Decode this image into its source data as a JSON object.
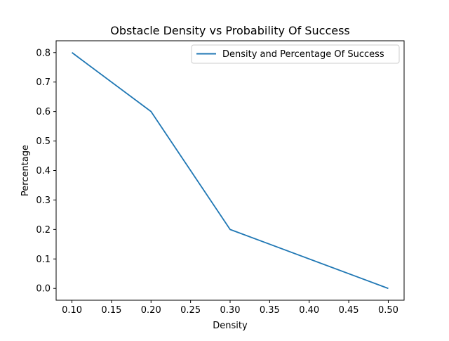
{
  "chart_data": {
    "type": "line",
    "title": "Obstacle Density vs Probability Of Success",
    "xlabel": "Density",
    "ylabel": "Percentage",
    "x": [
      0.1,
      0.2,
      0.3,
      0.5
    ],
    "series": [
      {
        "name": "Density and Percentage Of Success",
        "values": [
          0.8,
          0.6,
          0.2,
          0.0
        ]
      }
    ],
    "xlim": [
      0.08,
      0.52
    ],
    "ylim": [
      -0.04,
      0.84
    ],
    "xticks": [
      "0.10",
      "0.15",
      "0.20",
      "0.25",
      "0.30",
      "0.35",
      "0.40",
      "0.45",
      "0.50"
    ],
    "yticks": [
      "0.0",
      "0.1",
      "0.2",
      "0.3",
      "0.4",
      "0.5",
      "0.6",
      "0.7",
      "0.8"
    ],
    "grid": false,
    "legend_position": "top-right",
    "line_color": "#1f77b4"
  }
}
